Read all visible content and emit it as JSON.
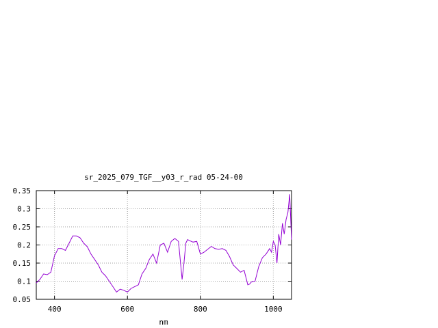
{
  "chart_data": {
    "type": "line",
    "title": "sr_2025_079_TGF__y03_r_rad 05-24-00",
    "xlabel": "nm",
    "ylabel": "",
    "xlim": [
      350,
      1050
    ],
    "ylim": [
      0.05,
      0.35
    ],
    "x_ticks": [
      400,
      600,
      800,
      1000
    ],
    "x_tick_labels": [
      "400",
      "600",
      "800",
      "1000"
    ],
    "y_ticks": [
      0.05,
      0.1,
      0.15,
      0.2,
      0.25,
      0.3,
      0.35
    ],
    "y_tick_labels": [
      "0.05",
      "0.1",
      "0.15",
      "0.2",
      "0.25",
      "0.3",
      "0.35"
    ],
    "grid": true,
    "series": [
      {
        "name": "",
        "color": "#9400d3",
        "x": [
          350,
          360,
          370,
          380,
          390,
          400,
          410,
          420,
          430,
          440,
          450,
          460,
          470,
          480,
          490,
          500,
          510,
          520,
          530,
          540,
          550,
          560,
          570,
          580,
          590,
          600,
          610,
          620,
          630,
          640,
          650,
          660,
          670,
          680,
          690,
          700,
          710,
          720,
          730,
          740,
          750,
          755,
          760,
          765,
          770,
          780,
          790,
          800,
          810,
          820,
          830,
          840,
          850,
          860,
          870,
          880,
          890,
          900,
          910,
          920,
          930,
          935,
          940,
          950,
          960,
          970,
          980,
          990,
          995,
          1000,
          1005,
          1010,
          1015,
          1020,
          1025,
          1030,
          1035,
          1040,
          1045,
          1050
        ],
        "y": [
          0.095,
          0.105,
          0.12,
          0.118,
          0.125,
          0.17,
          0.19,
          0.19,
          0.185,
          0.205,
          0.225,
          0.225,
          0.22,
          0.205,
          0.195,
          0.175,
          0.16,
          0.145,
          0.125,
          0.115,
          0.1,
          0.085,
          0.07,
          0.078,
          0.075,
          0.07,
          0.08,
          0.085,
          0.09,
          0.12,
          0.135,
          0.16,
          0.175,
          0.15,
          0.2,
          0.205,
          0.18,
          0.21,
          0.218,
          0.21,
          0.105,
          0.15,
          0.205,
          0.215,
          0.212,
          0.208,
          0.21,
          0.175,
          0.18,
          0.188,
          0.196,
          0.19,
          0.188,
          0.19,
          0.185,
          0.168,
          0.145,
          0.135,
          0.125,
          0.13,
          0.09,
          0.092,
          0.098,
          0.1,
          0.14,
          0.165,
          0.175,
          0.19,
          0.18,
          0.21,
          0.2,
          0.15,
          0.23,
          0.2,
          0.26,
          0.23,
          0.27,
          0.29,
          0.34,
          0.215
        ]
      }
    ]
  }
}
